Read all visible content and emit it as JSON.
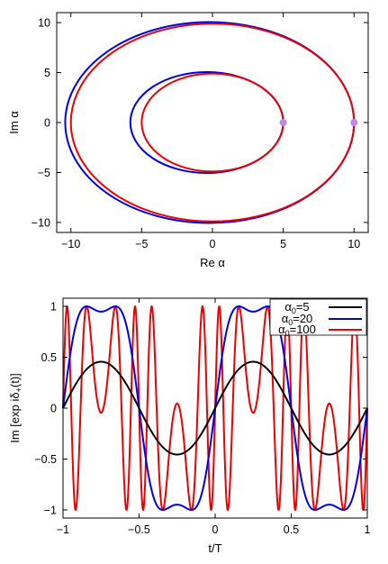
{
  "chart_data": [
    {
      "type": "line",
      "xlabel": "Re α",
      "ylabel": "Im α",
      "xlim": [
        -11,
        11
      ],
      "ylim": [
        -11,
        11
      ],
      "xticks": [
        -10,
        -5,
        0,
        5,
        10
      ],
      "yticks": [
        -10,
        -5,
        0,
        5,
        10
      ],
      "xtick_labels": [
        "−10",
        "−5",
        "0",
        "5",
        "10"
      ],
      "ytick_labels": [
        "−10",
        "−5",
        "0",
        "5",
        "10"
      ],
      "grid": false,
      "series": [
        {
          "color": "#0000ee",
          "kind": "ellipse",
          "center": [
            -0.4,
            0
          ],
          "radius_x": 5.4,
          "radius_y": 5.05
        },
        {
          "color": "#ee0000",
          "kind": "ellipse",
          "center": [
            0,
            0
          ],
          "radius_x": 5.0,
          "radius_y": 4.9
        },
        {
          "color": "#0000ee",
          "kind": "ellipse",
          "center": [
            -0.2,
            0
          ],
          "radius_x": 10.2,
          "radius_y": 10.05
        },
        {
          "color": "#ee0000",
          "kind": "ellipse",
          "center": [
            0,
            0
          ],
          "radius_x": 10.0,
          "radius_y": 9.9
        }
      ],
      "markers": [
        {
          "x": 5,
          "y": 0,
          "color": "#bb88ee"
        },
        {
          "x": 10,
          "y": 0,
          "color": "#bb88ee"
        }
      ]
    },
    {
      "type": "line",
      "xlabel": "t/T",
      "ylabel": "Im [exp iδ+(t)]",
      "ylabel_parts": {
        "main": "Im [exp iδ",
        "sub": "+",
        "tail": "(t)]"
      },
      "xlim": [
        -1,
        1
      ],
      "ylim": [
        -1.08,
        1.08
      ],
      "xticks": [
        -1,
        -0.5,
        0,
        0.5,
        1
      ],
      "yticks": [
        -1,
        -0.5,
        0,
        0.5,
        1
      ],
      "xtick_labels": [
        "−1",
        "−0.5",
        "0",
        "0.5",
        "1"
      ],
      "ytick_labels": [
        "−1",
        "−0.5",
        "0",
        "0.5",
        "1"
      ],
      "grid": false,
      "legend_position": "top-right",
      "series": [
        {
          "name": "α0=5",
          "name_main": "α",
          "name_sub": "0",
          "name_tail": "=5",
          "color": "#000000",
          "alpha0": 5
        },
        {
          "name": "α0=20",
          "name_main": "α",
          "name_sub": "0",
          "name_tail": "=20",
          "color": "#0000ee",
          "alpha0": 20
        },
        {
          "name": "α0=100",
          "name_main": "α",
          "name_sub": "0",
          "name_tail": "=100",
          "color": "#ee0000",
          "alpha0": 100
        }
      ],
      "formula": "y = sin(0.0947 · α0 · sin(2π t))"
    }
  ]
}
